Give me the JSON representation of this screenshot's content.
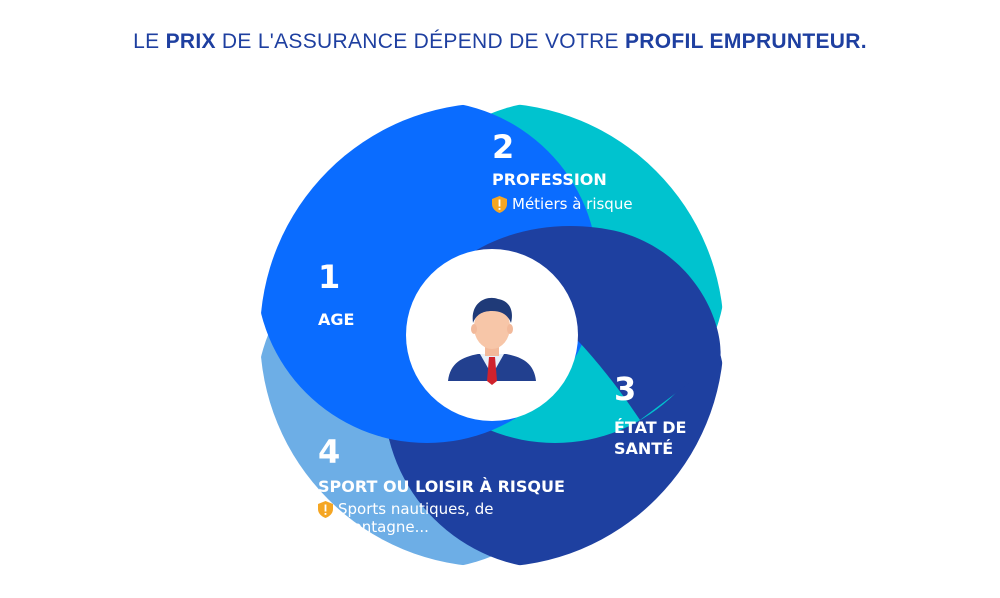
{
  "title": {
    "part1": "LE ",
    "part2": "PRIX",
    "part3": " DE L'ASSURANCE DÉPEND DE VOTRE ",
    "part4": "PROFIL EMPRUNTEUR."
  },
  "factors": [
    {
      "number": "1",
      "label": "AGE",
      "color": "#0a6cff"
    },
    {
      "number": "2",
      "label": "PROFESSION",
      "detail": "Métiers à risque",
      "color": "#00c3cf"
    },
    {
      "number": "3",
      "label_line1": "ÉTAT DE",
      "label_line2": "SANTÉ",
      "color": "#1e40a0"
    },
    {
      "number": "4",
      "label": "SPORT OU LOISIR À RISQUE",
      "detail_line1": "Sports nautiques, de",
      "detail_line2": "montagne...",
      "color": "#6daee6"
    }
  ],
  "center": {
    "icon": "businessman-icon"
  },
  "warning_icon": "warning-shield-icon",
  "colors": {
    "title": "#1e3fa0",
    "warning": "#f5a623"
  }
}
